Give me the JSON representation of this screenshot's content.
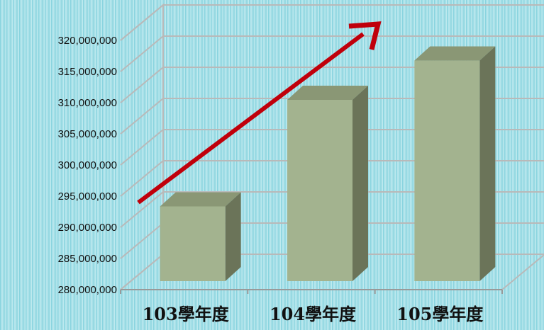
{
  "chart_data": {
    "type": "bar",
    "title": "",
    "xlabel": "",
    "ylabel": "",
    "categories": [
      "103學年度",
      "104學年度",
      "105學年度"
    ],
    "values": [
      292900000,
      310000000,
      316300000
    ],
    "ylim": [
      280000000,
      320000000
    ],
    "yticks": [
      "280,000,000",
      "285,000,000",
      "290,000,000",
      "295,000,000",
      "300,000,000",
      "305,000,000",
      "310,000,000",
      "315,000,000",
      "320,000,000"
    ],
    "grid": true,
    "style": "3d-column",
    "annotation": "upward trend arrow",
    "colors": {
      "bar_front": "#a3b38f",
      "bar_side": "#6b7459",
      "bar_top": "#8a9775",
      "grid": "#b9b9b9",
      "arrow": "#c0000b"
    }
  }
}
